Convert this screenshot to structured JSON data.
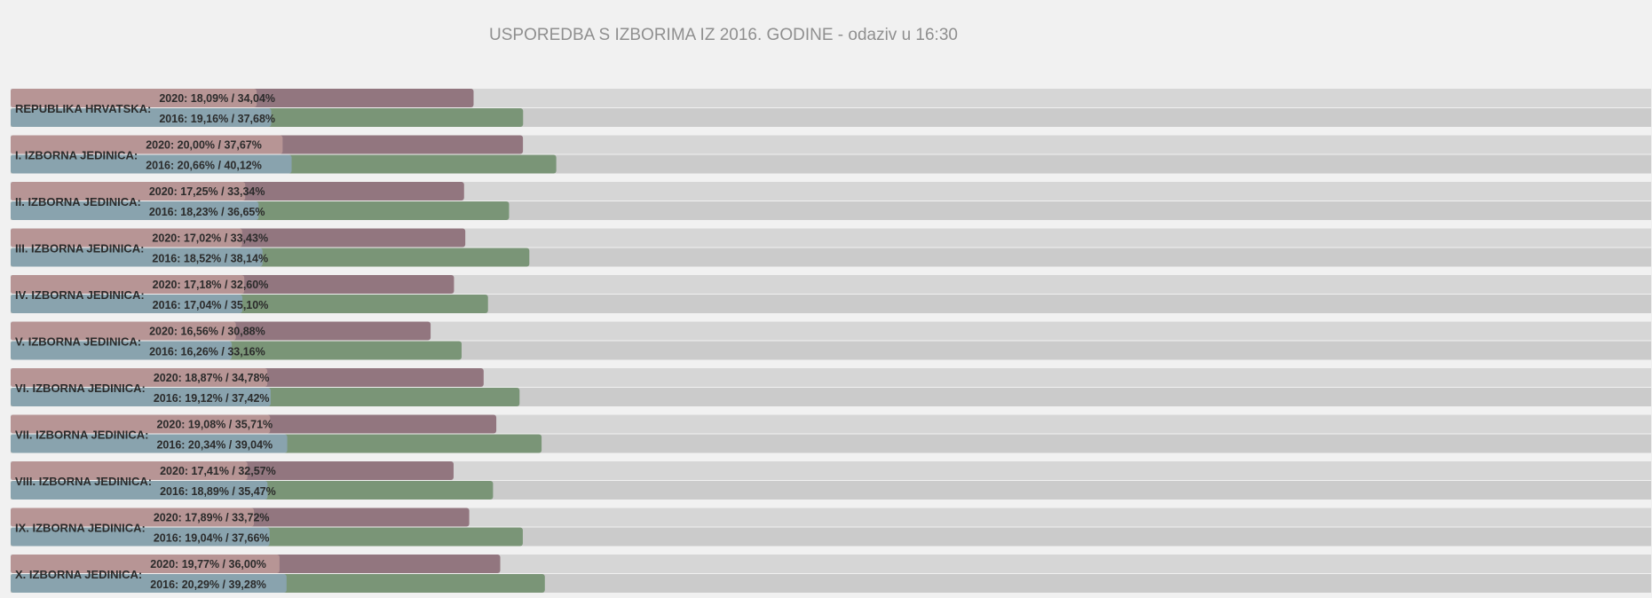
{
  "page_title": "USPOREDBA S IZBORIMA IZ 2016. GODINE - odaziv u 16:30",
  "colors": {
    "background": "#f1f1f1",
    "track_2020": "#d6d6d6",
    "track_2016": "#cbcbcb",
    "fill_2020_first": "#b79595",
    "fill_2020_second": "#92767f",
    "fill_2016_first": "#89a3ae",
    "fill_2016_second": "#7a9577",
    "text": "#2b2b2b",
    "title": "#8f8f8f"
  },
  "chart_data": {
    "type": "bar",
    "orientation": "horizontal",
    "title": "USPOREDBA S IZBORIMA IZ 2016. GODINE - odaziv u 16:30",
    "xlim": [
      0,
      100
    ],
    "grid": false,
    "categories": [
      "REPUBLIKA HRVATSKA:",
      "I. IZBORNA JEDINICA:",
      "II. IZBORNA JEDINICA:",
      "III. IZBORNA JEDINICA:",
      "IV. IZBORNA JEDINICA:",
      "V. IZBORNA JEDINICA:",
      "VI. IZBORNA JEDINICA:",
      "VII. IZBORNA JEDINICA:",
      "VIII. IZBORNA JEDINICA:",
      "IX. IZBORNA JEDINICA:",
      "X. IZBORNA JEDINICA:"
    ],
    "series": [
      {
        "name": "2020",
        "first_values": [
          18.09,
          20.0,
          17.25,
          17.02,
          17.18,
          16.56,
          18.87,
          19.08,
          17.41,
          17.89,
          19.77
        ],
        "second_values": [
          34.04,
          37.67,
          33.34,
          33.43,
          32.6,
          30.88,
          34.78,
          35.71,
          32.57,
          33.72,
          36.0
        ],
        "labels": [
          "2020: 18,09% / 34,04%",
          "2020: 20,00% / 37,67%",
          "2020: 17,25% / 33,34%",
          "2020: 17,02% / 33,43%",
          "2020: 17,18% / 32,60%",
          "2020: 16,56% / 30,88%",
          "2020: 18,87% / 34,78%",
          "2020: 19,08% / 35,71%",
          "2020: 17,41% / 32,57%",
          "2020: 17,89% / 33,72%",
          "2020: 19,77% / 36,00%"
        ]
      },
      {
        "name": "2016",
        "first_values": [
          19.16,
          20.66,
          18.23,
          18.52,
          17.04,
          16.26,
          19.12,
          20.34,
          18.89,
          19.04,
          20.29
        ],
        "second_values": [
          37.68,
          40.12,
          36.65,
          38.14,
          35.1,
          33.16,
          37.42,
          39.04,
          35.47,
          37.66,
          39.28
        ],
        "labels": [
          "2016: 19,16% / 37,68%",
          "2016: 20,66% / 40,12%",
          "2016: 18,23% / 36,65%",
          "2016: 18,52% / 38,14%",
          "2016: 17,04% / 35,10%",
          "2016: 16,26% / 33,16%",
          "2016: 19,12% / 37,42%",
          "2016: 20,34% / 39,04%",
          "2016: 18,89% / 35,47%",
          "2016: 19,04% / 37,66%",
          "2016: 20,29% / 39,28%"
        ]
      }
    ]
  }
}
